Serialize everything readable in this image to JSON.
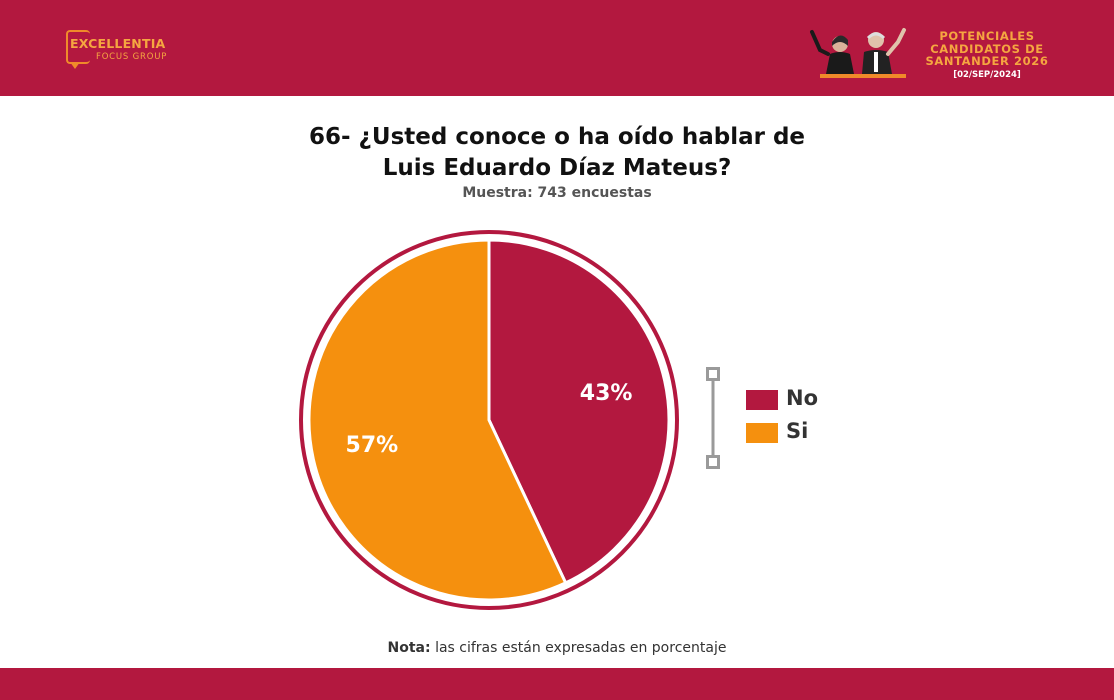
{
  "header": {
    "logo_main": "EXCELLENTIA",
    "logo_sub": "FOCUS GROUP",
    "title_lines": [
      "POTENCIALES",
      "CANDIDATOS DE",
      "SANTANDER 2026"
    ],
    "date": "[02/SEP/2024]"
  },
  "colors": {
    "brand": "#b3183f",
    "accent": "#f08a2a",
    "pie_no": "#b3183f",
    "pie_si": "#f5900e"
  },
  "note": {
    "label": "Nota:",
    "text": "las cifras están expresadas en porcentaje"
  },
  "chart_data": {
    "type": "pie",
    "title_lines": [
      "66- ¿Usted conoce o ha oído hablar de",
      "Luis Eduardo Díaz Mateus?"
    ],
    "subtitle": "Muestra: 743 encuestas",
    "legend_position": "right",
    "slices": [
      {
        "label": "No",
        "value": 43,
        "display": "43%",
        "color": "#b3183f"
      },
      {
        "label": "Si",
        "value": 57,
        "display": "57%",
        "color": "#f5900e"
      }
    ]
  }
}
